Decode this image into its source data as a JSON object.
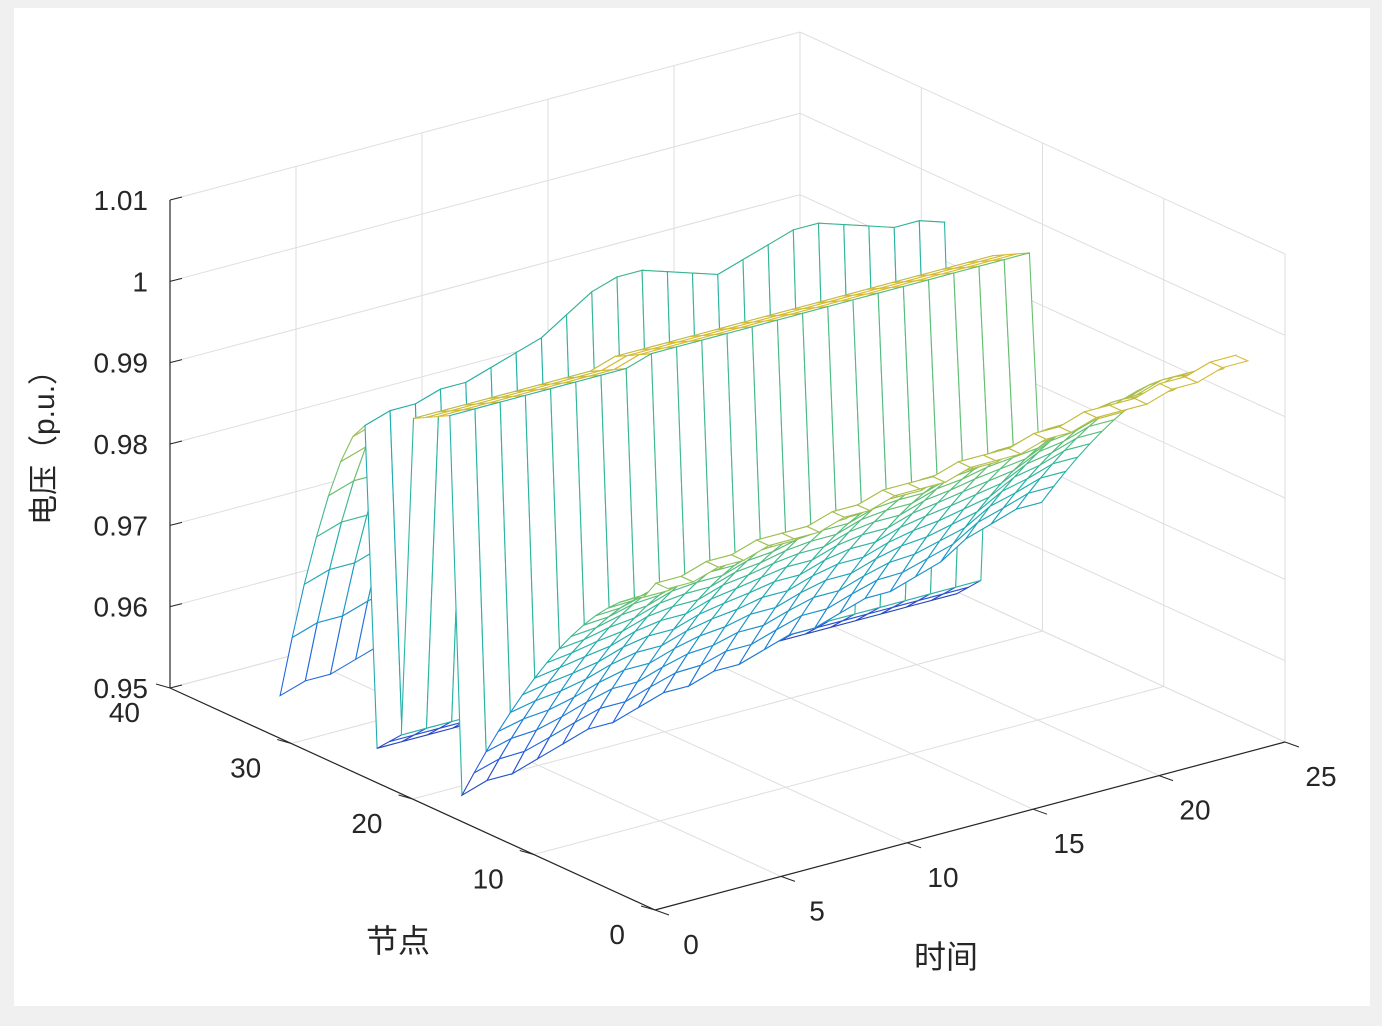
{
  "chart_data": {
    "type": "surface-mesh",
    "zlabel": "电压（p.u.）",
    "xlabel": "时间",
    "ylabel": "节点",
    "xlim": [
      0,
      25
    ],
    "ylim": [
      0,
      40
    ],
    "zlim": [
      0.95,
      1.01
    ],
    "x_ticks": [
      "0",
      "5",
      "10",
      "15",
      "20",
      "25"
    ],
    "y_ticks": [
      "0",
      "10",
      "20",
      "30",
      "40"
    ],
    "z_ticks": [
      "0.95",
      "0.96",
      "0.97",
      "0.98",
      "0.99",
      "1",
      "1.01"
    ],
    "grid": true,
    "time": [
      1,
      2,
      3,
      4,
      5,
      6,
      7,
      8,
      9,
      10,
      11,
      12,
      13,
      14,
      15,
      16,
      17,
      18,
      19,
      20,
      21,
      22,
      23,
      24
    ],
    "nodes": [
      1,
      2,
      3,
      4,
      5,
      6,
      7,
      8,
      9,
      10,
      11,
      12,
      13,
      14,
      15,
      16,
      17,
      18,
      19,
      20,
      21,
      22,
      23,
      24,
      25,
      26,
      27,
      28,
      29,
      30,
      31,
      32,
      33
    ],
    "branch_a_nodes": [
      1,
      18
    ],
    "branch_b_nodes": [
      19,
      22
    ],
    "branch_c_nodes": [
      23,
      25
    ],
    "branch_d_nodes": [
      26,
      33
    ],
    "voltage_source_node": 1,
    "branch_a_end_voltage": [
      0.951,
      0.952,
      0.952,
      0.953,
      0.954,
      0.955,
      0.955,
      0.956,
      0.957,
      0.957,
      0.958,
      0.958,
      0.959,
      0.96,
      0.96,
      0.961,
      0.962,
      0.962,
      0.963,
      0.964,
      0.966,
      0.967,
      0.968,
      0.968
    ],
    "branch_a_top_voltage": [
      0.986,
      0.986,
      0.987,
      0.987,
      0.988,
      0.988,
      0.988,
      0.989,
      0.989,
      0.99,
      0.99,
      0.99,
      0.991,
      0.991,
      0.991,
      0.992,
      0.992,
      0.993,
      0.993,
      0.993,
      0.994,
      0.994,
      0.995,
      0.995
    ],
    "branch_d_end_voltage": [
      0.953,
      0.954,
      0.954,
      0.955,
      0.956,
      0.957,
      0.958,
      0.958,
      0.959,
      0.96,
      0.96,
      0.961,
      0.962,
      0.962,
      0.963,
      0.963,
      0.964,
      0.965,
      0.965,
      0.966,
      0.967,
      0.968,
      0.969,
      0.969
    ],
    "branch_d_top_voltage": [
      0.991,
      0.992,
      0.992,
      0.993,
      0.993,
      0.994,
      0.995,
      0.996,
      0.998,
      1.0,
      1.001,
      1.001,
      1.0,
      0.999,
      0.998,
      0.999,
      1.0,
      1.001,
      1.001,
      1.0,
      0.999,
      0.998,
      0.998,
      0.997
    ],
    "branch_b_voltage": [
      0.997,
      0.997,
      0.997,
      0.997,
      0.997,
      0.997,
      0.997,
      0.997,
      0.998,
      0.998,
      0.998,
      0.998,
      0.998,
      0.998,
      0.998,
      0.998,
      0.998,
      0.998,
      0.998,
      0.998,
      0.998,
      0.998,
      0.998,
      0.998
    ],
    "branch_c_low_voltage": [
      0.955,
      0.955,
      0.955,
      0.955,
      0.955,
      0.955,
      0.955,
      0.955,
      0.955,
      0.955,
      0.955,
      0.955,
      0.955,
      0.955,
      0.955,
      0.955,
      0.955,
      0.955,
      0.955,
      0.955,
      0.955,
      0.955,
      0.955,
      0.955
    ]
  }
}
